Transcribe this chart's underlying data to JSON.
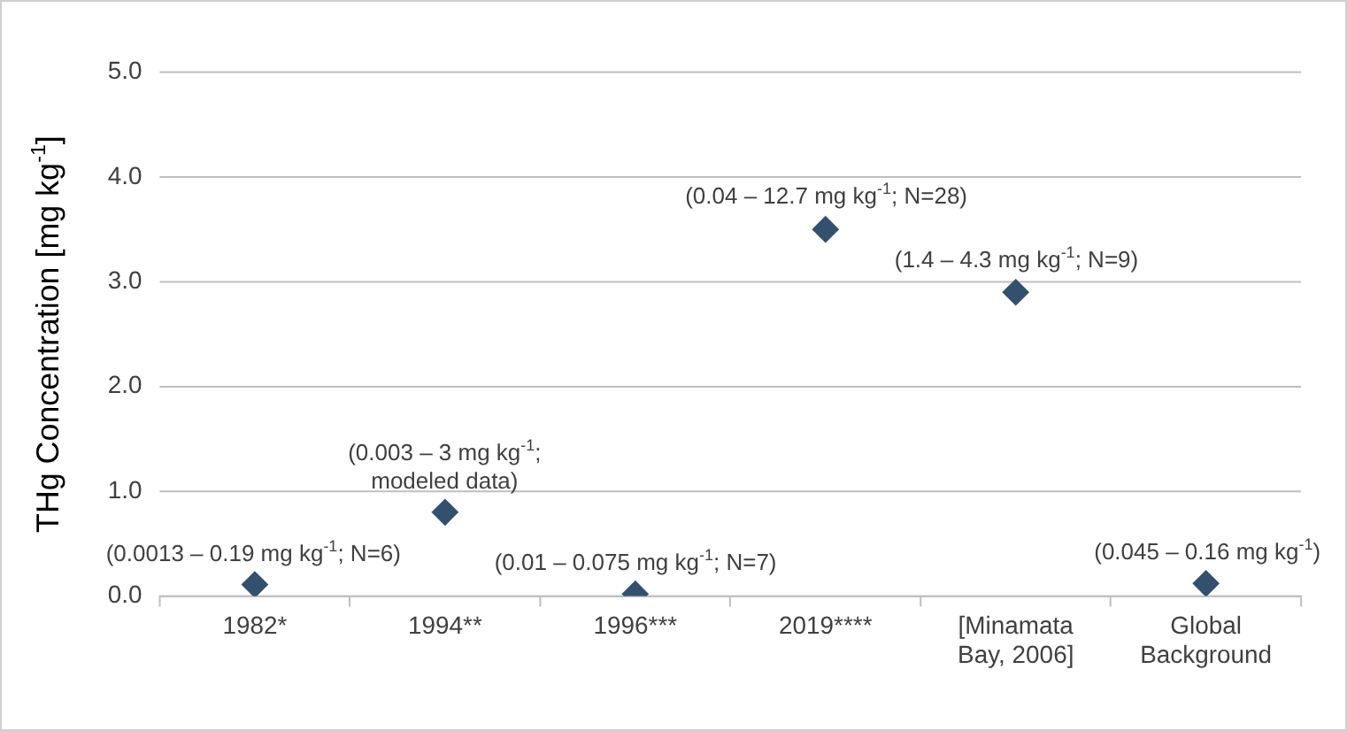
{
  "chart_data": {
    "type": "scatter",
    "ylabel": "THg Concentration [mg kg$^{-1}$]",
    "categories": [
      "1982*",
      "1994**",
      "1996***",
      "2019****",
      "[Minamata\nBay, 2006]",
      "Global\nBackground"
    ],
    "values": [
      0.11,
      0.8,
      0.02,
      3.5,
      2.9,
      0.12
    ],
    "color": "#34506f",
    "marker": "diamond",
    "ylim": [
      0,
      5
    ],
    "yticks": [
      {
        "value": 0,
        "label": "0.0"
      },
      {
        "value": 1,
        "label": "1.0"
      },
      {
        "value": 2,
        "label": "2.0"
      },
      {
        "value": 3,
        "label": "3.0"
      },
      {
        "value": 4,
        "label": "4.0"
      },
      {
        "value": 5,
        "label": "5.0"
      }
    ],
    "grid": "y",
    "legend": false,
    "annotations": [
      {
        "text": "(0.0013 – 0.19 mg kg$^{-1}$; N=6)",
        "x": "1982*",
        "y": 0.11
      },
      {
        "text": "(0.003 – 3 mg kg$^{-1}$;\nmodeled data)",
        "x": "1994**",
        "y": 0.8
      },
      {
        "text": "(0.01 – 0.075 mg kg$^{-1}$; N=7)",
        "x": "1996***",
        "y": 0.02
      },
      {
        "text": "(0.04 – 12.7 mg kg$^{-1}$; N=28)",
        "x": "2019****",
        "y": 3.5
      },
      {
        "text": "(1.4 – 4.3 mg kg$^{-1}$; N=9)",
        "x": "[Minamata\nBay, 2006]",
        "y": 2.9
      },
      {
        "text": "(0.045 – 0.16 mg kg$^{-1}$)",
        "x": "Global\nBackground",
        "y": 0.12
      }
    ]
  }
}
